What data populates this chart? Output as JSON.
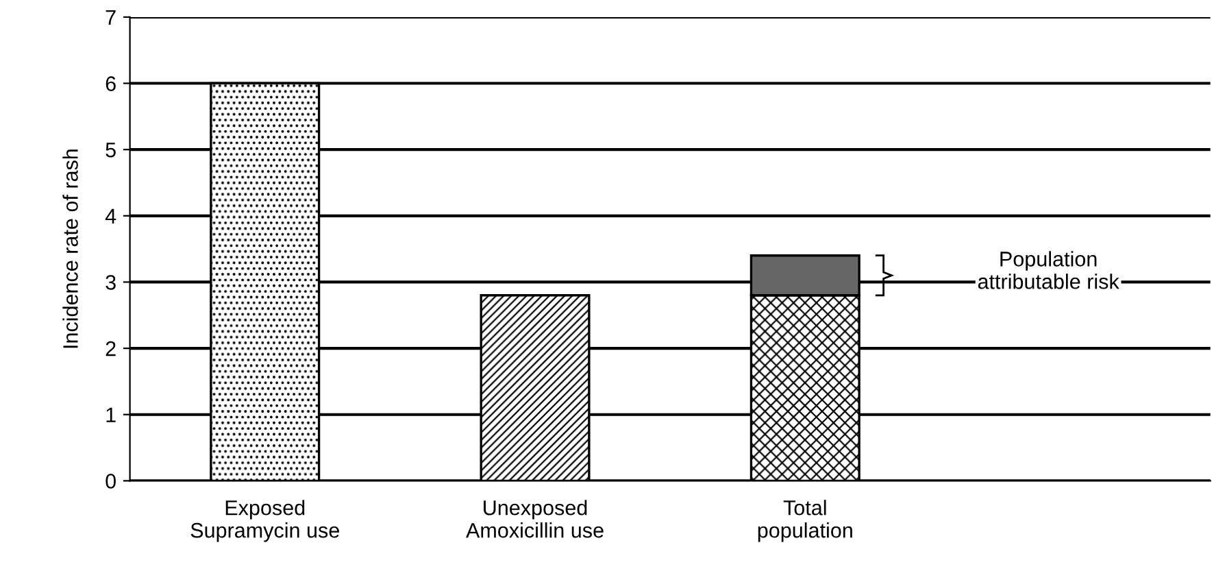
{
  "chart_data": {
    "type": "bar",
    "stacked": true,
    "ylabel": "Incidence rate of rash",
    "categories": [
      "Exposed\nSupramycin use",
      "Unexposed\nAmoxicillin use",
      "Total\npopulation"
    ],
    "series": [
      {
        "color": "#000000",
        "values": [
          6,
          2.8,
          2.8
        ]
      },
      {
        "color": "#666666",
        "values": [
          null,
          null,
          0.6
        ]
      }
    ],
    "ylim": [
      0,
      7
    ],
    "yticks": [
      0,
      1,
      2,
      3,
      4,
      5,
      6,
      7
    ],
    "grid": "y",
    "annotations": [
      "Population\nattributable risk"
    ]
  }
}
